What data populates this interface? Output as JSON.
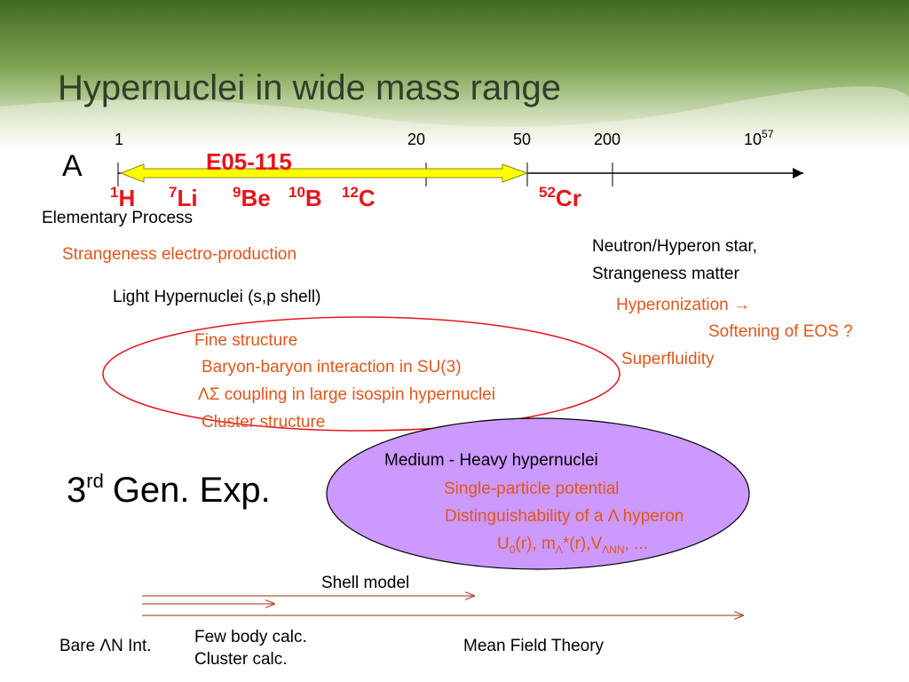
{
  "header": {
    "title": "Hypernuclei in wide mass range"
  },
  "axis": {
    "label": "A",
    "ticks": [
      "1",
      "20",
      "50",
      "200"
    ],
    "last_tick": {
      "base": "10",
      "exp": "57"
    },
    "experiment": "E05-115",
    "nuclei": [
      {
        "mass": "1",
        "symbol": "H"
      },
      {
        "mass": "7",
        "symbol": "Li"
      },
      {
        "mass": "9",
        "symbol": "Be"
      },
      {
        "mass": "10",
        "symbol": "B"
      },
      {
        "mass": "12",
        "symbol": "C"
      },
      {
        "mass": "52",
        "symbol": "Cr"
      }
    ]
  },
  "elementary": {
    "heading": "Elementary Process",
    "item": "Strangeness electro-production"
  },
  "light": {
    "heading": "Light Hypernuclei (s,p shell)",
    "items": [
      "Fine structure",
      "Baryon-baryon interaction in SU(3)",
      "ΛΣ coupling in large isospin hypernuclei",
      "Cluster structure"
    ]
  },
  "star": {
    "heading": [
      "Neutron/Hyperon star,",
      "Strangeness matter"
    ],
    "items": [
      "Hyperonization →",
      "Softening of EOS ?",
      "Superfluidity"
    ]
  },
  "generation": {
    "number": "3",
    "sup": "rd",
    "rest": "Gen. Exp."
  },
  "medium": {
    "heading": "Medium - Heavy hypernuclei",
    "items": [
      "Single-particle potential",
      "Distinguishability of a Λ hyperon"
    ],
    "formula": [
      "U",
      "0",
      "(r), m",
      "Λ",
      "*(r),V",
      "ΛNN",
      ", ..."
    ]
  },
  "theory": {
    "shell": "Shell model",
    "bare": "Bare ΛN Int.",
    "few": [
      "Few body calc.",
      "Cluster calc."
    ],
    "mean": "Mean Field Theory"
  }
}
